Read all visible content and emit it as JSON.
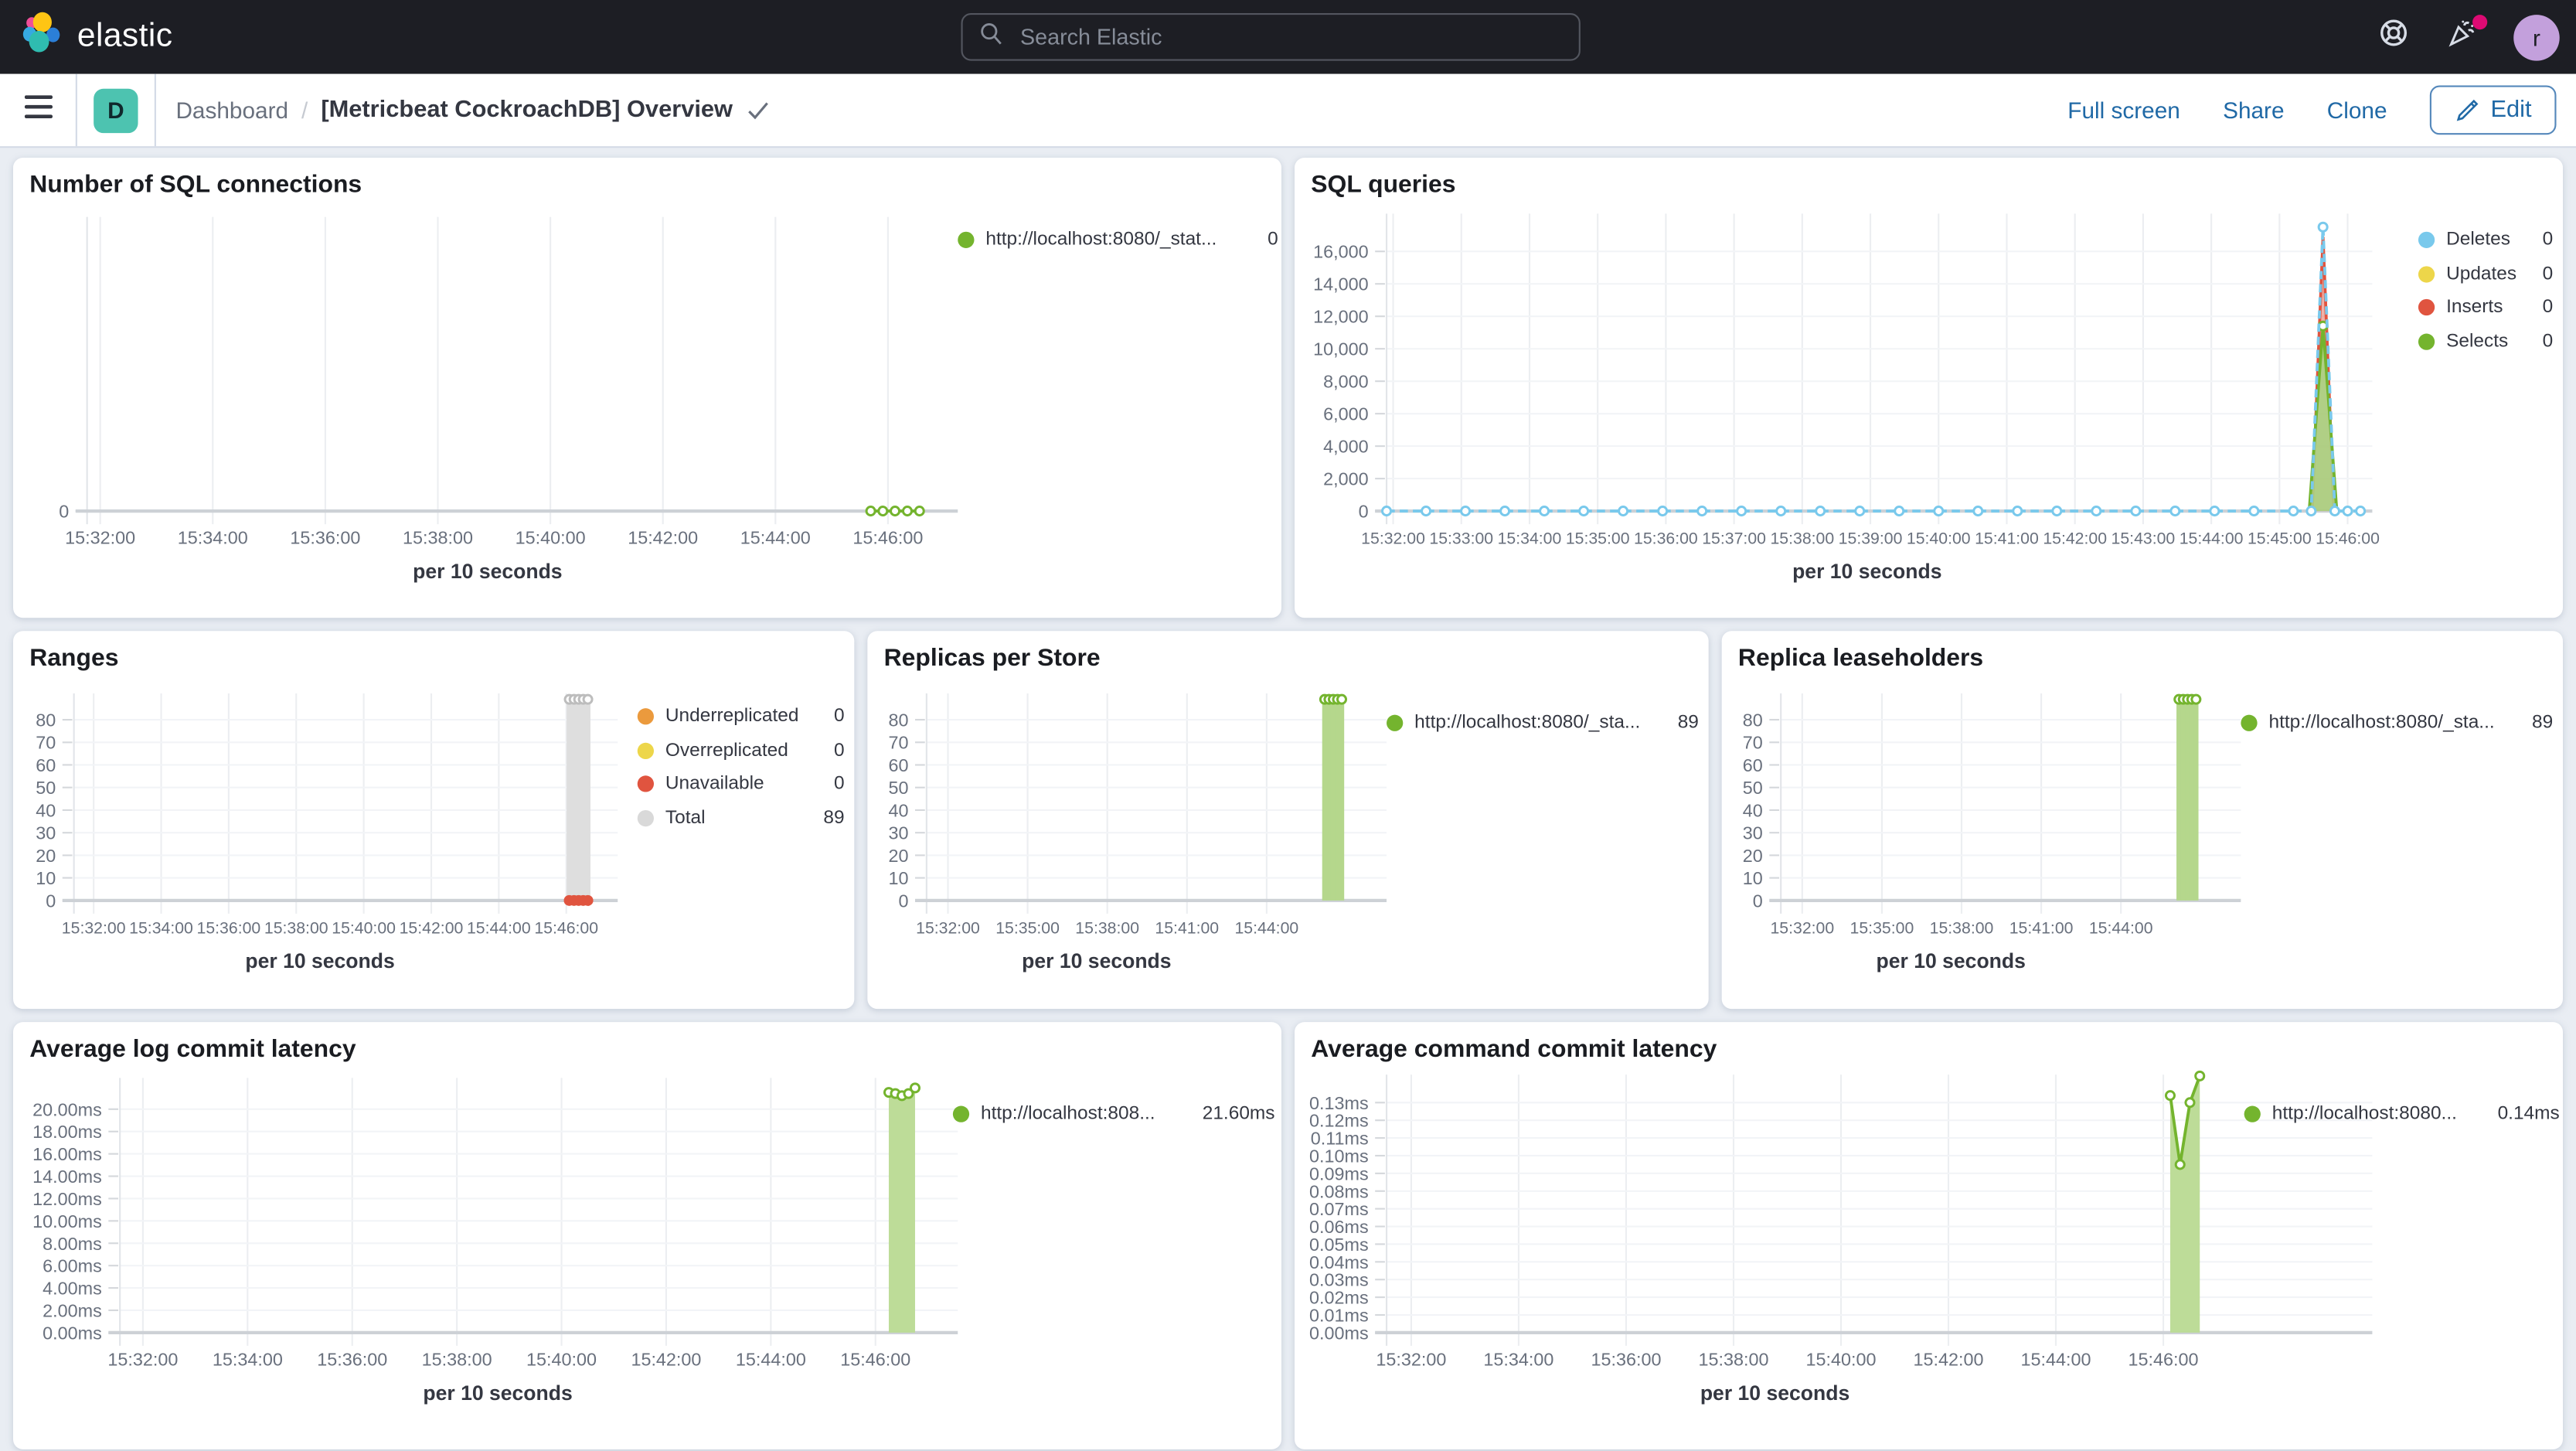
{
  "header": {
    "brand": "elastic",
    "search_placeholder": "Search Elastic",
    "avatar_initial": "r"
  },
  "toolbar": {
    "space_initial": "D",
    "breadcrumb_root": "Dashboard",
    "breadcrumb_sep": "/",
    "title": "[Metricbeat CockroachDB] Overview",
    "actions": {
      "full_screen": "Full screen",
      "share": "Share",
      "clone": "Clone",
      "edit": "Edit"
    }
  },
  "colors": {
    "header_bg": "#1d1e24",
    "page_bg": "#e9edf3",
    "panel_bg": "#ffffff",
    "link_blue": "#2069a6",
    "space_badge_teal": "#4dc3b0",
    "avatar_purple": "#c3a0dc",
    "alert_pink": "#dd0a73",
    "series_green": "#74b42e",
    "series_green_fill": "#b9da92",
    "series_blue": "#79c9ec",
    "series_yellow": "#edd64a",
    "series_red": "#e0543f",
    "series_orange": "#eb9a3d",
    "series_gray": "#d9d9d9"
  },
  "chart_data": [
    {
      "id": "sql-connections",
      "type": "line",
      "title": "Number of SQL connections",
      "x_label": "per 10 seconds",
      "x_ticks": [
        "15:32:00",
        "15:34:00",
        "15:36:00",
        "15:38:00",
        "15:40:00",
        "15:42:00",
        "15:44:00",
        "15:46:00"
      ],
      "y_ticks": [
        "0"
      ],
      "legend": [
        {
          "label": "http://localhost:8080/_stat...",
          "value": "0",
          "color": "#74b42e"
        }
      ],
      "series": [
        {
          "name": "connections",
          "color": "#74b42e",
          "markers": "open",
          "points": [
            [
              0.9,
              0
            ],
            [
              0.914,
              0
            ],
            [
              0.928,
              0
            ],
            [
              0.942,
              0
            ],
            [
              0.956,
              0
            ]
          ]
        }
      ]
    },
    {
      "id": "sql-queries",
      "type": "line",
      "title": "SQL queries",
      "x_label": "per 10 seconds",
      "x_ticks": [
        "15:32:00",
        "15:33:00",
        "15:34:00",
        "15:35:00",
        "15:36:00",
        "15:37:00",
        "15:38:00",
        "15:39:00",
        "15:40:00",
        "15:41:00",
        "15:42:00",
        "15:43:00",
        "15:44:00",
        "15:45:00",
        "15:46:00"
      ],
      "y_ticks": [
        "0",
        "2,000",
        "4,000",
        "6,000",
        "8,000",
        "10,000",
        "12,000",
        "14,000",
        "16,000"
      ],
      "y_tick_max": 16000,
      "legend": [
        {
          "label": "Deletes",
          "value": "0",
          "color": "#79c9ec"
        },
        {
          "label": "Updates",
          "value": "0",
          "color": "#edd64a"
        },
        {
          "label": "Inserts",
          "value": "0",
          "color": "#e0543f"
        },
        {
          "label": "Selects",
          "value": "0",
          "color": "#74b42e"
        }
      ],
      "series": [
        {
          "name": "Inserts",
          "color": "#e0543f",
          "fill": "#e0543f",
          "fill_opacity": 0.45,
          "markers": "none",
          "points": [
            [
              0.939,
              0
            ],
            [
              0.95,
              16900
            ],
            [
              0.961,
              0
            ]
          ]
        },
        {
          "name": "Selects",
          "color": "#74b42e",
          "fill": "#a9d181",
          "fill_opacity": 0.9,
          "markers": "peak",
          "points": [
            [
              0.936,
              0
            ],
            [
              0.95,
              11400
            ],
            [
              0.964,
              0
            ]
          ]
        },
        {
          "name": "Deletes",
          "color": "#79c9ec",
          "dashed": true,
          "markers": "open",
          "points": [
            [
              0,
              0
            ],
            [
              0.04,
              0
            ],
            [
              0.08,
              0
            ],
            [
              0.12,
              0
            ],
            [
              0.16,
              0
            ],
            [
              0.2,
              0
            ],
            [
              0.24,
              0
            ],
            [
              0.28,
              0
            ],
            [
              0.32,
              0
            ],
            [
              0.36,
              0
            ],
            [
              0.4,
              0
            ],
            [
              0.44,
              0
            ],
            [
              0.48,
              0
            ],
            [
              0.52,
              0
            ],
            [
              0.56,
              0
            ],
            [
              0.6,
              0
            ],
            [
              0.64,
              0
            ],
            [
              0.68,
              0
            ],
            [
              0.72,
              0
            ],
            [
              0.76,
              0
            ],
            [
              0.8,
              0
            ],
            [
              0.84,
              0
            ],
            [
              0.88,
              0
            ],
            [
              0.92,
              0
            ],
            [
              0.938,
              0
            ],
            [
              0.95,
              17500
            ],
            [
              0.962,
              0
            ],
            [
              0.975,
              0
            ],
            [
              0.988,
              0
            ]
          ]
        }
      ]
    },
    {
      "id": "ranges",
      "type": "bar",
      "title": "Ranges",
      "x_label": "per 10 seconds",
      "x_ticks": [
        "15:32:00",
        "15:34:00",
        "15:36:00",
        "15:38:00",
        "15:40:00",
        "15:42:00",
        "15:44:00",
        "15:46:00"
      ],
      "y_ticks": [
        "0",
        "10",
        "20",
        "30",
        "40",
        "50",
        "60",
        "70",
        "80"
      ],
      "y_tick_max": 80,
      "legend": [
        {
          "label": "Underreplicated",
          "value": "0",
          "color": "#eb9a3d"
        },
        {
          "label": "Overreplicated",
          "value": "0",
          "color": "#edd64a"
        },
        {
          "label": "Unavailable",
          "value": "0",
          "color": "#e0543f"
        },
        {
          "label": "Total",
          "value": "89",
          "color": "#d9d9d9"
        }
      ],
      "series": [
        {
          "name": "Total",
          "type": "bars",
          "color": "#bdbdbd",
          "fill": "#dedede",
          "bar_w": 2.9,
          "markers": "open",
          "points": [
            [
              0.911,
              89
            ],
            [
              0.9195,
              89
            ],
            [
              0.928,
              89
            ],
            [
              0.9365,
              89
            ],
            [
              0.945,
              89
            ]
          ]
        },
        {
          "name": "Unavailable",
          "color": "#e0543f",
          "line": false,
          "markers": "solid",
          "points": [
            [
              0.911,
              0
            ],
            [
              0.9195,
              0
            ],
            [
              0.928,
              0
            ],
            [
              0.9365,
              0
            ],
            [
              0.945,
              0
            ]
          ]
        }
      ]
    },
    {
      "id": "replicas-per-store",
      "type": "bar",
      "title": "Replicas per Store",
      "x_label": "per 10 seconds",
      "x_ticks": [
        "15:32:00",
        "15:35:00",
        "15:38:00",
        "15:41:00",
        "15:44:00"
      ],
      "y_ticks": [
        "0",
        "10",
        "20",
        "30",
        "40",
        "50",
        "60",
        "70",
        "80"
      ],
      "y_tick_max": 80,
      "legend": [
        {
          "label": "http://localhost:8080/_sta...",
          "value": "89",
          "color": "#74b42e"
        }
      ],
      "series": [
        {
          "name": "replicas",
          "type": "bars",
          "color": "#74b42e",
          "fill": "#b5d78c",
          "bar_w": 2.6,
          "markers": "open",
          "points": [
            [
              0.8654,
              89
            ],
            [
              0.8746,
              89
            ],
            [
              0.8839,
              89
            ],
            [
              0.8932,
              89
            ],
            [
              0.9025,
              89
            ]
          ]
        }
      ]
    },
    {
      "id": "replica-leaseholders",
      "type": "bar",
      "title": "Replica leaseholders",
      "x_label": "per 10 seconds",
      "x_ticks": [
        "15:32:00",
        "15:35:00",
        "15:38:00",
        "15:41:00",
        "15:44:00"
      ],
      "y_ticks": [
        "0",
        "10",
        "20",
        "30",
        "40",
        "50",
        "60",
        "70",
        "80"
      ],
      "y_tick_max": 80,
      "legend": [
        {
          "label": "http://localhost:8080/_sta...",
          "value": "89",
          "color": "#74b42e"
        }
      ],
      "series": [
        {
          "name": "leaseholders",
          "type": "bars",
          "color": "#74b42e",
          "fill": "#b5d78c",
          "bar_w": 2.6,
          "markers": "open",
          "points": [
            [
              0.8654,
              89
            ],
            [
              0.8746,
              89
            ],
            [
              0.8839,
              89
            ],
            [
              0.8932,
              89
            ],
            [
              0.9025,
              89
            ]
          ]
        }
      ]
    },
    {
      "id": "avg-log-commit-latency",
      "type": "area",
      "title": "Average log commit latency",
      "x_label": "per 10 seconds",
      "x_ticks": [
        "15:32:00",
        "15:34:00",
        "15:36:00",
        "15:38:00",
        "15:40:00",
        "15:42:00",
        "15:44:00",
        "15:46:00"
      ],
      "y_ticks": [
        "0.00ms",
        "2.00ms",
        "4.00ms",
        "6.00ms",
        "8.00ms",
        "10.00ms",
        "12.00ms",
        "14.00ms",
        "16.00ms",
        "18.00ms",
        "20.00ms"
      ],
      "y_tick_max": 20,
      "legend": [
        {
          "label": "http://localhost:808...",
          "value": "21.60ms",
          "color": "#74b42e"
        }
      ],
      "series": [
        {
          "name": "log-commit-latency-ms",
          "color": "#74b42e",
          "fill": "#b9da92",
          "fill_opacity": 0.95,
          "markers": "open",
          "points": [
            [
              0.9176,
              21.5
            ],
            [
              0.9255,
              21.4
            ],
            [
              0.9333,
              21.2
            ],
            [
              0.9412,
              21.4
            ],
            [
              0.949,
              21.9
            ]
          ]
        }
      ]
    },
    {
      "id": "avg-command-commit-latency",
      "type": "area",
      "title": "Average command commit latency",
      "x_label": "per 10 seconds",
      "x_ticks": [
        "15:32:00",
        "15:34:00",
        "15:36:00",
        "15:38:00",
        "15:40:00",
        "15:42:00",
        "15:44:00",
        "15:46:00"
      ],
      "y_ticks": [
        "0.00ms",
        "0.01ms",
        "0.02ms",
        "0.03ms",
        "0.04ms",
        "0.05ms",
        "0.06ms",
        "0.07ms",
        "0.08ms",
        "0.09ms",
        "0.10ms",
        "0.11ms",
        "0.12ms",
        "0.13ms"
      ],
      "y_tick_max": 0.13,
      "legend": [
        {
          "label": "http://localhost:8080...",
          "value": "0.14ms",
          "color": "#74b42e"
        }
      ],
      "series": [
        {
          "name": "command-commit-latency-ms",
          "color": "#74b42e",
          "fill": "#b9da92",
          "fill_opacity": 0.95,
          "markers": "open",
          "points": [
            [
              0.795,
              0.134
            ],
            [
              0.805,
              0.095
            ],
            [
              0.815,
              0.13
            ],
            [
              0.825,
              0.145
            ]
          ]
        }
      ]
    }
  ]
}
